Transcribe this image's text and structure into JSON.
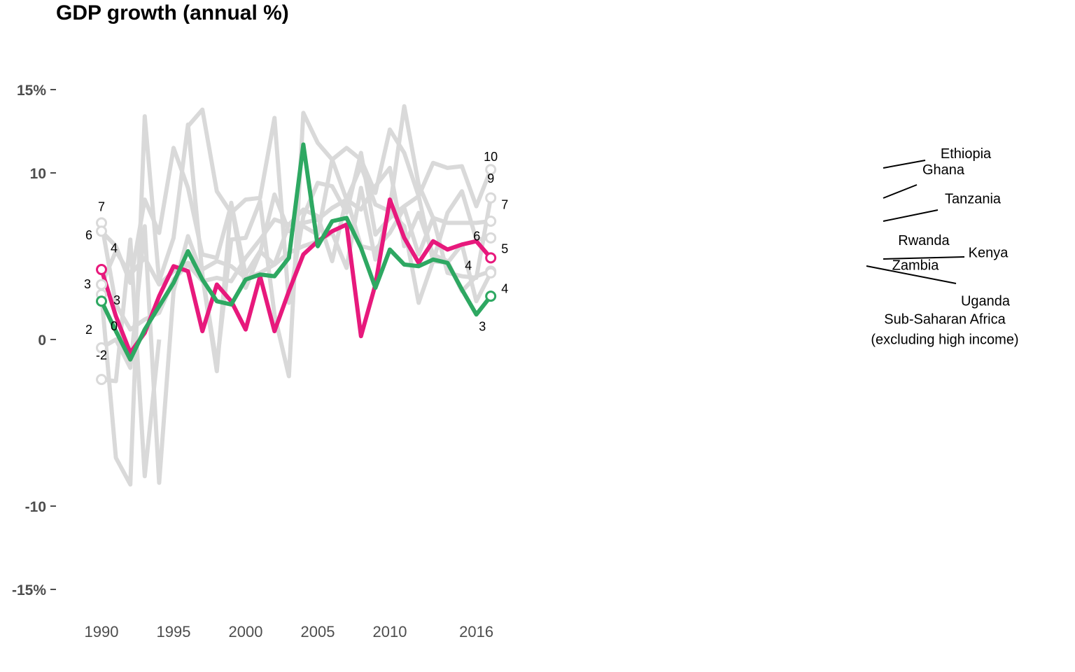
{
  "title": "GDP growth (annual %)",
  "chart_data": {
    "type": "line",
    "title": "GDP growth (annual %)",
    "xlabel": "",
    "ylabel": "",
    "xlim": [
      1990,
      2017
    ],
    "ylim": [
      -15,
      15
    ],
    "x_ticks": [
      {
        "value": 1990,
        "label": "1990"
      },
      {
        "value": 1995,
        "label": "1995"
      },
      {
        "value": 2000,
        "label": "2000"
      },
      {
        "value": 2005,
        "label": "2005"
      },
      {
        "value": 2010,
        "label": "2010"
      },
      {
        "value": 2016,
        "label": "2016"
      }
    ],
    "y_ticks": [
      {
        "value": 15,
        "label": "15%"
      },
      {
        "value": 10,
        "label": "10"
      },
      {
        "value": 0,
        "label": "0"
      },
      {
        "value": -10,
        "label": "-10"
      },
      {
        "value": -15,
        "label": "-15%"
      }
    ],
    "grid": false,
    "colors": {
      "highlight_kenya": "#e7197c",
      "highlight_ssa": "#2ea862",
      "background_series": "#d9d9d9",
      "axis_text": "#4d4d4d"
    },
    "start_labels": [
      {
        "text": "7",
        "y": 7.2
      },
      {
        "text": "6",
        "y": 6.6
      },
      {
        "text": "4",
        "y": 4.9
      },
      {
        "text": "3",
        "y": 3.9
      },
      {
        "text": "3",
        "y": 3.1
      },
      {
        "text": "2",
        "y": 1.6
      },
      {
        "text": "0",
        "y": 0.2
      },
      {
        "text": "-2",
        "y": -1.7
      }
    ],
    "end_labels": [
      {
        "text": "10",
        "y": 10.3
      },
      {
        "text": "9",
        "y": 8.9
      },
      {
        "text": "7",
        "y": 7.5
      },
      {
        "text": "6",
        "y": 6.2
      },
      {
        "text": "5",
        "y": 5.1
      },
      {
        "text": "4",
        "y": 4.6
      },
      {
        "text": "4",
        "y": 3.3
      },
      {
        "text": "3",
        "y": 1.7
      }
    ],
    "series": [
      {
        "name": "Ethiopia",
        "highlight": false,
        "x": [
          1990,
          1991,
          1992,
          1993,
          1994,
          1995,
          1996,
          1997,
          1998,
          1999,
          2000,
          2001,
          2002,
          2003,
          2004,
          2005,
          2006,
          2007,
          2008,
          2009,
          2010,
          2011,
          2012,
          2013,
          2014,
          2015,
          2016,
          2017
        ],
        "values": [
          2.7,
          -7.1,
          -8.7,
          13.4,
          3.5,
          6.1,
          12.9,
          3.9,
          -1.5,
          6.0,
          6.1,
          8.3,
          1.5,
          -2.2,
          13.6,
          11.8,
          10.8,
          11.5,
          10.8,
          8.8,
          12.6,
          11.2,
          8.6,
          10.6,
          10.3,
          10.4,
          8.0,
          10.2
        ]
      },
      {
        "name": "Ghana",
        "highlight": false,
        "x": [
          1990,
          1991,
          1992,
          1993,
          1994,
          1995,
          1996,
          1997,
          1998,
          1999,
          2000,
          2001,
          2002,
          2003,
          2004,
          2005,
          2006,
          2007,
          2008,
          2009,
          2010,
          2011,
          2012,
          2013,
          2014,
          2015,
          2016,
          2017
        ],
        "values": [
          3.3,
          5.3,
          3.9,
          4.9,
          3.3,
          4.1,
          4.6,
          4.2,
          4.7,
          4.4,
          3.7,
          4.0,
          4.5,
          5.2,
          5.6,
          5.9,
          6.4,
          4.3,
          9.1,
          4.8,
          7.9,
          14.0,
          9.3,
          7.3,
          4.0,
          3.8,
          3.7,
          8.5
        ]
      },
      {
        "name": "Tanzania",
        "highlight": false,
        "x": [
          1990,
          1991,
          1992,
          1993,
          1994,
          1995,
          1996,
          1997,
          1998,
          1999,
          2000,
          2001,
          2002,
          2003,
          2004,
          2005,
          2006,
          2007,
          2008,
          2009,
          2010,
          2011,
          2012,
          2013,
          2014,
          2015,
          2016,
          2017
        ],
        "values": [
          7.0,
          2.1,
          0.6,
          1.2,
          1.6,
          3.6,
          4.5,
          3.5,
          3.7,
          3.5,
          4.9,
          6.0,
          7.2,
          6.9,
          7.8,
          7.4,
          4.7,
          8.5,
          5.6,
          5.4,
          6.4,
          7.9,
          5.1,
          7.3,
          7.0,
          7.0,
          7.0,
          7.1
        ]
      },
      {
        "name": "Rwanda",
        "highlight": false,
        "x": [
          1990,
          1991,
          1992,
          1993,
          1994
        ],
        "values": [
          -2.4,
          -2.5,
          6.0,
          -8.2,
          0
        ]
      },
      {
        "name": "Rwanda",
        "highlight": false,
        "x": [
          1996,
          1997,
          1998,
          1999,
          2000,
          2001,
          2002,
          2003,
          2004,
          2005,
          2006,
          2007,
          2008,
          2009,
          2010,
          2011,
          2012,
          2013,
          2014,
          2015,
          2016,
          2017
        ],
        "values": [
          12.8,
          13.8,
          8.9,
          7.6,
          8.4,
          8.5,
          13.3,
          2.2,
          7.4,
          9.4,
          9.2,
          7.6,
          11.2,
          6.3,
          7.3,
          8.0,
          8.6,
          4.7,
          7.6,
          8.9,
          6.0,
          6.1
        ]
      },
      {
        "name": "Kenya",
        "highlight": true,
        "x": [
          1990,
          1991,
          1992,
          1993,
          1994,
          1995,
          1996,
          1997,
          1998,
          1999,
          2000,
          2001,
          2002,
          2003,
          2004,
          2005,
          2006,
          2007,
          2008,
          2009,
          2010,
          2011,
          2012,
          2013,
          2014,
          2015,
          2016,
          2017
        ],
        "values": [
          4.2,
          1.4,
          -0.8,
          0.4,
          2.6,
          4.4,
          4.1,
          0.5,
          3.3,
          2.3,
          0.6,
          3.8,
          0.5,
          2.9,
          5.1,
          5.9,
          6.5,
          6.9,
          0.2,
          3.3,
          8.4,
          6.1,
          4.6,
          5.9,
          5.4,
          5.7,
          5.9,
          4.9
        ]
      },
      {
        "name": "Zambia",
        "highlight": false,
        "x": [
          1990,
          1991,
          1992,
          1993,
          1994,
          1995,
          1996,
          1997,
          1998,
          1999,
          2000,
          2001,
          2002,
          2003,
          2004,
          2005,
          2006,
          2007,
          2008,
          2009,
          2010,
          2011,
          2012,
          2013,
          2014,
          2015,
          2016,
          2017
        ],
        "values": [
          -0.5,
          0,
          -1.7,
          6.8,
          -8.6,
          2.9,
          6.2,
          3.8,
          -1.9,
          8.2,
          3.9,
          5.3,
          4.5,
          6.9,
          7.0,
          7.2,
          7.9,
          8.4,
          7.8,
          9.2,
          10.3,
          5.6,
          7.6,
          5.1,
          4.7,
          2.9,
          3.8,
          4.1
        ]
      },
      {
        "name": "Uganda",
        "highlight": false,
        "x": [
          1990,
          1991,
          1992,
          1993,
          1994,
          1995,
          1996,
          1997,
          1998,
          1999,
          2000,
          2001,
          2002,
          2003,
          2004,
          2005,
          2006,
          2007,
          2008,
          2009,
          2010,
          2011,
          2012,
          2013,
          2014,
          2015,
          2016,
          2017
        ],
        "values": [
          6.5,
          5.6,
          3.4,
          8.4,
          6.4,
          11.5,
          9.1,
          5.1,
          4.9,
          8.1,
          3.1,
          5.2,
          8.7,
          6.5,
          6.8,
          6.3,
          10.8,
          8.4,
          10.4,
          8.1,
          7.7,
          6.8,
          2.2,
          4.7,
          4.6,
          5.7,
          2.3,
          4.0
        ]
      },
      {
        "name": "Sub-Saharan Africa (excluding high income)",
        "highlight": true,
        "x": [
          1990,
          1991,
          1992,
          1993,
          1994,
          1995,
          1996,
          1997,
          1998,
          1999,
          2000,
          2001,
          2002,
          2003,
          2004,
          2005,
          2006,
          2007,
          2008,
          2009,
          2010,
          2011,
          2012,
          2013,
          2014,
          2015,
          2016,
          2017
        ],
        "values": [
          2.3,
          0.5,
          -1.2,
          0.6,
          2.0,
          3.4,
          5.3,
          3.6,
          2.3,
          2.1,
          3.6,
          3.9,
          3.8,
          4.9,
          11.7,
          5.6,
          7.1,
          7.3,
          5.5,
          3.1,
          5.4,
          4.5,
          4.4,
          4.8,
          4.6,
          3.0,
          1.5,
          2.6
        ]
      }
    ],
    "series_labels": [
      {
        "text": "Ethiopia",
        "y": 10.3
      },
      {
        "text": "Ghana",
        "y": 8.9
      },
      {
        "text": "Tanzania",
        "y": 7.5
      },
      {
        "text": "Rwanda",
        "y": 6.1
      },
      {
        "text": "Kenya",
        "y": 5.1
      },
      {
        "text": "Zambia",
        "y": 4.6
      },
      {
        "text": "Uganda",
        "y": 3.3
      },
      {
        "text": "Sub-Saharan Africa",
        "y": 1.7
      },
      {
        "text": "(excluding high income)",
        "y": 0.4
      }
    ]
  }
}
